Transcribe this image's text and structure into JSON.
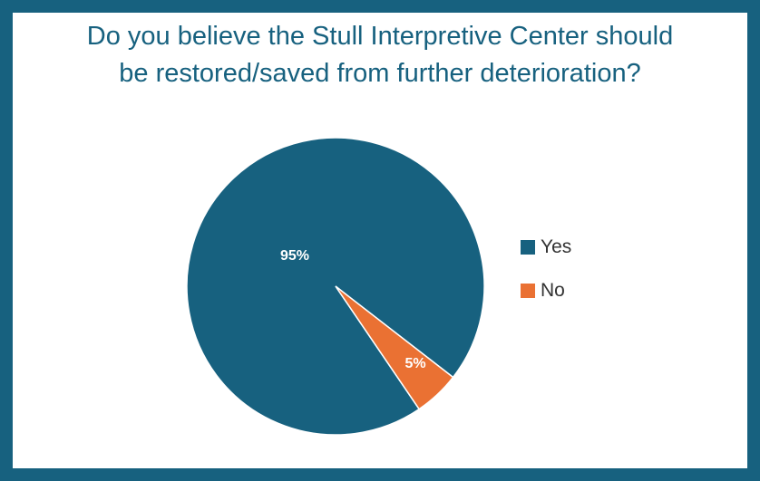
{
  "chart_data": {
    "type": "pie",
    "title_lines": [
      "Do you believe the Stull Interpretive Center should",
      "be restored/saved from further deterioration?"
    ],
    "categories": [
      "Yes",
      "No"
    ],
    "values": [
      95,
      5
    ],
    "data_labels": [
      "95%",
      "5%"
    ],
    "colors": [
      "#17617f",
      "#ea7133"
    ],
    "legend_position": "right"
  },
  "colors": {
    "frame": "#17617f",
    "title": "#17617f",
    "label_text": "#ffffff"
  }
}
